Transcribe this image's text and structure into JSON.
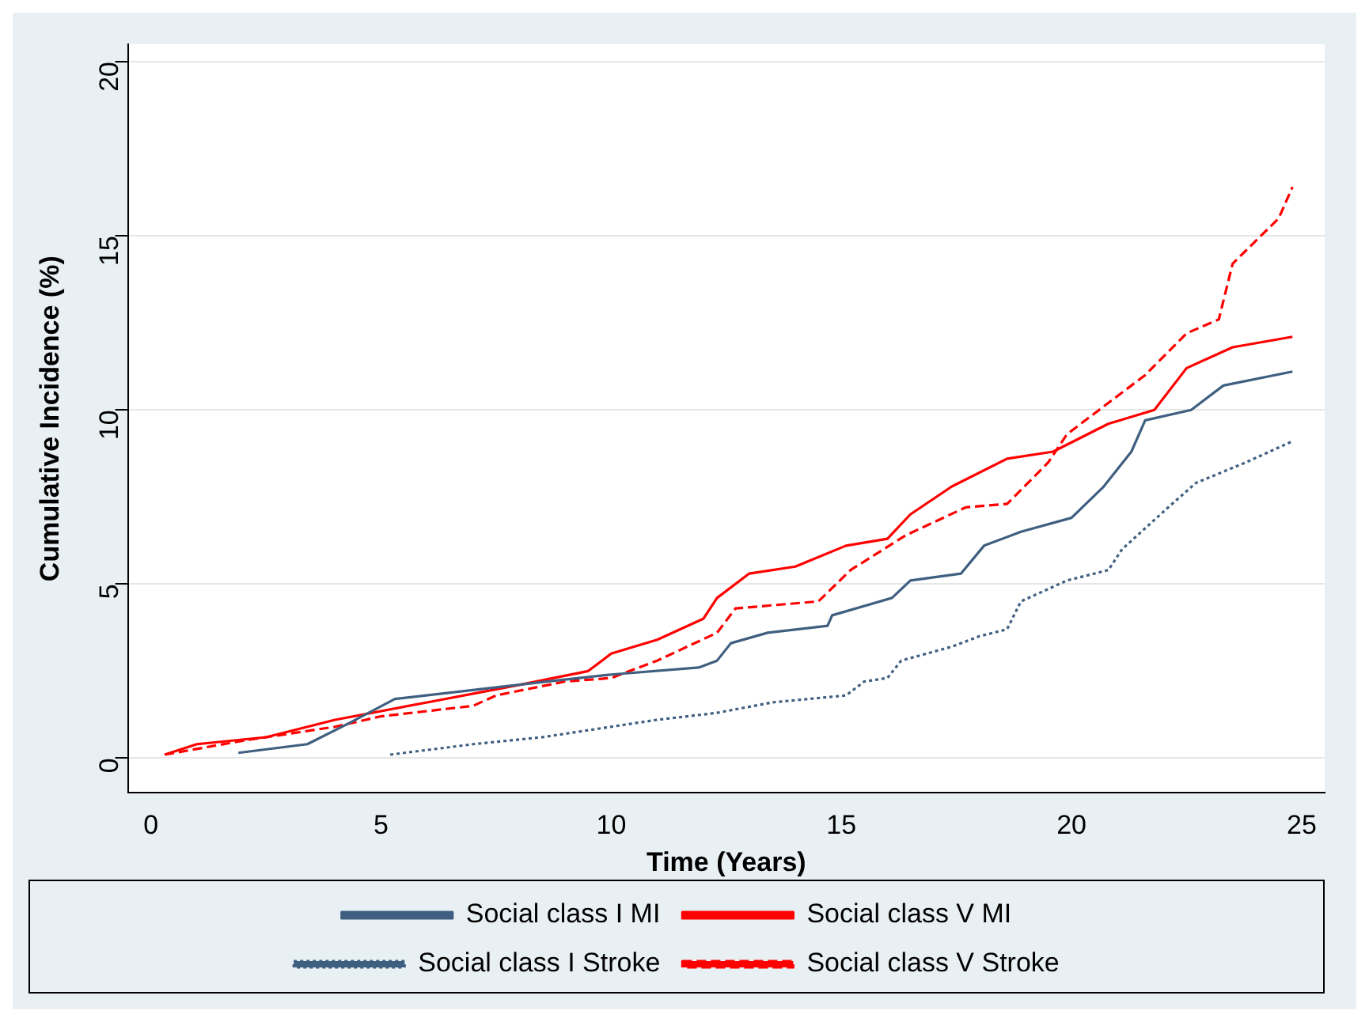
{
  "chart_data": {
    "type": "line",
    "xlabel": "Time (Years)",
    "ylabel": "Cumulative Incidence (%)",
    "xlim": [
      -0.5,
      25.5
    ],
    "ylim": [
      -1,
      20.5
    ],
    "xticks": [
      0,
      5,
      10,
      15,
      20,
      25
    ],
    "yticks": [
      0,
      5,
      10,
      15,
      20
    ],
    "grid": "y",
    "legend": "bottom",
    "series": [
      {
        "name": "Social class I MI",
        "color": "#3f5f80",
        "line_style": "solid",
        "x": [
          1.9,
          3.4,
          4.3,
          5.3,
          8.6,
          10,
          11.9,
          12.3,
          12.6,
          13.4,
          14.7,
          14.8,
          16.1,
          16.5,
          17.6,
          18.1,
          18.9,
          20,
          20.7,
          21.3,
          21.6,
          22.6,
          23.3,
          24.8
        ],
        "values": [
          0.15,
          0.4,
          1.0,
          1.7,
          2.2,
          2.4,
          2.6,
          2.8,
          3.3,
          3.6,
          3.8,
          4.1,
          4.6,
          5.1,
          5.3,
          6.1,
          6.5,
          6.9,
          7.8,
          8.8,
          9.7,
          10.0,
          10.7,
          11.1
        ]
      },
      {
        "name": "Social class V MI",
        "color": "#ff0000",
        "line_style": "solid",
        "x": [
          0.3,
          1,
          2.5,
          4,
          6,
          8,
          9.5,
          10,
          11,
          12,
          12.3,
          13,
          14,
          15.1,
          16,
          16.5,
          17.4,
          18.6,
          19.6,
          20.8,
          21.8,
          22.5,
          23.5,
          24.8
        ],
        "values": [
          0.1,
          0.4,
          0.6,
          1.1,
          1.6,
          2.1,
          2.5,
          3.0,
          3.4,
          4.0,
          4.6,
          5.3,
          5.5,
          6.1,
          6.3,
          7.0,
          7.8,
          8.6,
          8.8,
          9.6,
          10.0,
          11.2,
          11.8,
          12.1
        ]
      },
      {
        "name": "Social class I Stroke",
        "color": "#3f5f80",
        "line_style": "dotted",
        "x": [
          5.2,
          7,
          8.5,
          10,
          11,
          12.3,
          13.5,
          15.1,
          15.5,
          16,
          16.3,
          17.4,
          18,
          18.6,
          18.9,
          19.9,
          20.8,
          21.1,
          22.1,
          22.7,
          23.8,
          24.8
        ],
        "values": [
          0.1,
          0.4,
          0.6,
          0.9,
          1.1,
          1.3,
          1.6,
          1.8,
          2.2,
          2.3,
          2.8,
          3.2,
          3.5,
          3.7,
          4.5,
          5.1,
          5.4,
          6.0,
          7.2,
          7.9,
          8.5,
          9.1
        ]
      },
      {
        "name": "Social class V Stroke",
        "color": "#ff0000",
        "line_style": "dashed",
        "x": [
          0.3,
          2,
          4,
          5,
          7,
          7.5,
          9,
          10,
          11,
          12.3,
          12.7,
          14.5,
          15.2,
          16.4,
          17.7,
          18.6,
          19.5,
          19.9,
          21.6,
          22.5,
          23.2,
          23.5,
          24.5,
          24.8
        ],
        "values": [
          0.1,
          0.5,
          0.9,
          1.2,
          1.5,
          1.8,
          2.2,
          2.3,
          2.8,
          3.6,
          4.3,
          4.5,
          5.4,
          6.4,
          7.2,
          7.3,
          8.5,
          9.3,
          11.0,
          12.2,
          12.6,
          14.2,
          15.5,
          16.4
        ]
      }
    ]
  }
}
